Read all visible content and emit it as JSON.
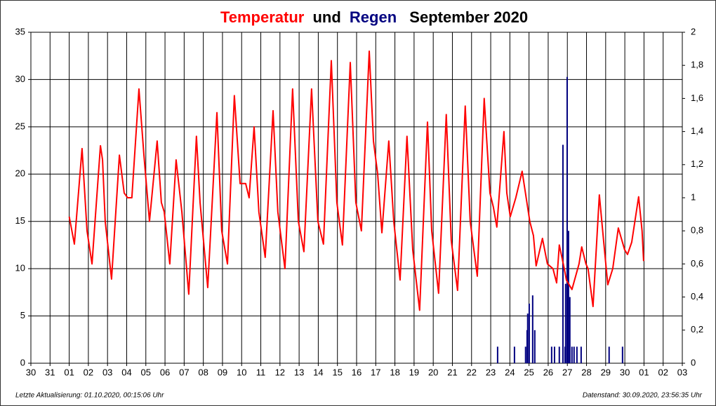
{
  "chart_data": {
    "type": "line",
    "title_connector": "und",
    "title_period": "September 2020",
    "footer_left": "Letzte Aktualisierung: 01.10.2020, 00:15:06 Uhr",
    "footer_right": "Datenstand: 30.09.2020, 23:56:35 Uhr",
    "grid": true,
    "xlim": [
      0,
      34
    ],
    "xticks": [
      {
        "value": 0,
        "label": "30"
      },
      {
        "value": 1,
        "label": "31"
      },
      {
        "value": 2,
        "label": "01"
      },
      {
        "value": 3,
        "label": "02"
      },
      {
        "value": 4,
        "label": "03"
      },
      {
        "value": 5,
        "label": "04"
      },
      {
        "value": 6,
        "label": "05"
      },
      {
        "value": 7,
        "label": "06"
      },
      {
        "value": 8,
        "label": "07"
      },
      {
        "value": 9,
        "label": "08"
      },
      {
        "value": 10,
        "label": "09"
      },
      {
        "value": 11,
        "label": "10"
      },
      {
        "value": 12,
        "label": "11"
      },
      {
        "value": 13,
        "label": "12"
      },
      {
        "value": 14,
        "label": "13"
      },
      {
        "value": 15,
        "label": "14"
      },
      {
        "value": 16,
        "label": "15"
      },
      {
        "value": 17,
        "label": "16"
      },
      {
        "value": 18,
        "label": "17"
      },
      {
        "value": 19,
        "label": "18"
      },
      {
        "value": 20,
        "label": "19"
      },
      {
        "value": 21,
        "label": "20"
      },
      {
        "value": 22,
        "label": "21"
      },
      {
        "value": 23,
        "label": "22"
      },
      {
        "value": 24,
        "label": "23"
      },
      {
        "value": 25,
        "label": "24"
      },
      {
        "value": 26,
        "label": "25"
      },
      {
        "value": 27,
        "label": "26"
      },
      {
        "value": 28,
        "label": "27"
      },
      {
        "value": 29,
        "label": "28"
      },
      {
        "value": 30,
        "label": "29"
      },
      {
        "value": 31,
        "label": "30"
      },
      {
        "value": 32,
        "label": "01"
      },
      {
        "value": 33,
        "label": "02"
      },
      {
        "value": 34,
        "label": "03"
      }
    ],
    "ylim": [
      0,
      35
    ],
    "yticks": [
      0,
      5,
      10,
      15,
      20,
      25,
      30,
      35
    ],
    "y2lim": [
      0,
      2
    ],
    "y2ticks": [
      0,
      {
        "value": 0.2,
        "label": "0,2"
      },
      {
        "value": 0.4,
        "label": "0,4"
      },
      {
        "value": 0.6,
        "label": "0,6"
      },
      {
        "value": 0.8,
        "label": "0,8"
      },
      1,
      {
        "value": 1.2,
        "label": "1,2"
      },
      {
        "value": 1.4,
        "label": "1,4"
      },
      {
        "value": 1.6,
        "label": "1,6"
      },
      {
        "value": 1.8,
        "label": "1,8"
      },
      2
    ],
    "series": [
      {
        "name": "Temperatur",
        "color": "#ff0000",
        "type": "line",
        "x": [
          2.0,
          2.27,
          2.67,
          2.93,
          3.19,
          3.63,
          3.74,
          3.88,
          4.21,
          4.62,
          4.87,
          5.05,
          5.27,
          5.64,
          5.9,
          6.19,
          6.59,
          6.81,
          6.96,
          7.25,
          7.58,
          7.88,
          8.24,
          8.64,
          8.83,
          9.23,
          9.71,
          9.96,
          10.26,
          10.62,
          10.92,
          11.21,
          11.39,
          11.65,
          11.9,
          12.23,
          12.64,
          12.89,
          13.26,
          13.66,
          13.96,
          14.25,
          14.65,
          14.98,
          15.27,
          15.68,
          15.97,
          16.26,
          16.67,
          16.96,
          17.25,
          17.66,
          17.88,
          18.1,
          18.32,
          18.68,
          18.94,
          19.27,
          19.63,
          19.93,
          20.29,
          20.7,
          20.92,
          21.28,
          21.68,
          21.94,
          22.27,
          22.67,
          22.93,
          23.3,
          23.66,
          23.96,
          24.14,
          24.32,
          24.69,
          24.84,
          25.02,
          25.31,
          25.64,
          26.04,
          26.23,
          26.37,
          26.7,
          26.96,
          27.25,
          27.44,
          27.58,
          27.84,
          27.95,
          28.24,
          28.61,
          28.75,
          28.97,
          29.08,
          29.34,
          29.67,
          29.89,
          30.11,
          30.37,
          30.66,
          30.99,
          31.14,
          31.36,
          31.72,
          31.9,
          31.98
        ],
        "values": [
          15.5,
          12.6,
          22.7,
          14,
          10.5,
          23,
          21.5,
          15,
          8.9,
          22,
          18,
          17.5,
          17.5,
          29,
          22,
          15,
          23.5,
          17,
          16,
          10.5,
          21.5,
          16,
          7.3,
          24,
          17,
          8,
          26.5,
          14,
          10.5,
          28.3,
          19,
          19,
          17.5,
          25,
          16,
          11.2,
          26.7,
          16,
          10,
          29,
          15,
          11.8,
          29,
          15,
          12.6,
          32,
          17,
          12.5,
          31.8,
          17,
          14,
          33,
          23.5,
          20,
          13.8,
          23.5,
          15,
          8.8,
          24,
          12,
          5.6,
          25.5,
          14,
          7.4,
          26.3,
          13,
          7.7,
          27.2,
          15,
          9.2,
          28,
          18,
          16.5,
          14.4,
          24.5,
          18,
          15.5,
          17.5,
          20.3,
          15,
          13.5,
          10.3,
          13.2,
          10.5,
          10,
          8.5,
          12.5,
          10,
          8.8,
          7.8,
          10.5,
          12.3,
          10.5,
          10,
          6,
          17.8,
          13,
          8.3,
          10,
          14.3,
          12,
          11.5,
          12.8,
          17.6,
          14,
          10.8
        ]
      },
      {
        "name": "Regen",
        "color": "#000080",
        "type": "bar",
        "axis": "y2",
        "x": [
          24.36,
          25.24,
          25.82,
          25.9,
          25.93,
          26.01,
          26.19,
          26.3,
          27.18,
          27.33,
          27.58,
          27.77,
          27.88,
          27.91,
          27.99,
          28.06,
          28.13,
          28.24,
          28.35,
          28.5,
          28.72,
          30.18,
          30.88
        ],
        "values": [
          0.1,
          0.1,
          0.1,
          0.2,
          0.3,
          0.36,
          0.41,
          0.2,
          0.1,
          0.1,
          0.1,
          1.32,
          0.1,
          0.48,
          1.73,
          0.8,
          0.4,
          0.1,
          0.1,
          0.1,
          0.1,
          0.1,
          0.1
        ]
      }
    ]
  }
}
